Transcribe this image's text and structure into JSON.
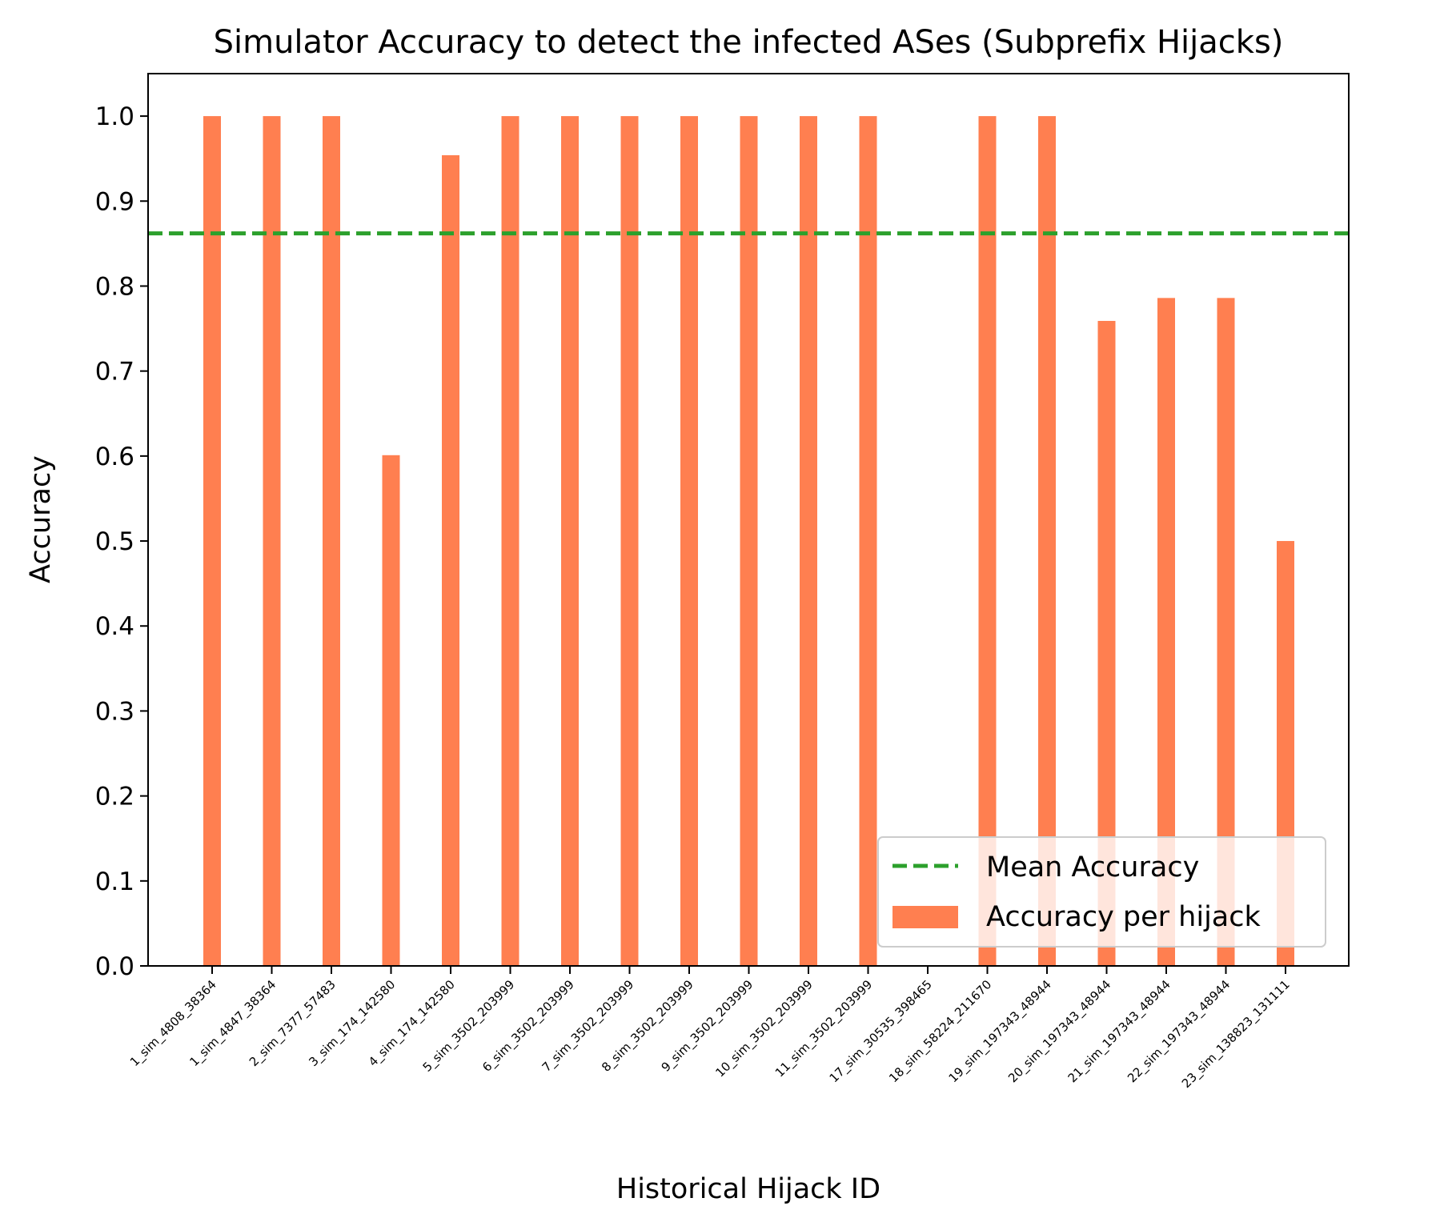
{
  "chart_data": {
    "type": "bar",
    "title": "Simulator Accuracy to detect the infected ASes (Subprefix Hijacks)",
    "xlabel": "Historical Hijack ID",
    "ylabel": "Accuracy",
    "ylim": [
      0,
      1.05
    ],
    "yticks": [
      "0.0",
      "0.1",
      "0.2",
      "0.3",
      "0.4",
      "0.5",
      "0.6",
      "0.7",
      "0.8",
      "0.9",
      "1.0"
    ],
    "categories": [
      "1_sim_4808_38364",
      "1_sim_4847_38364",
      "2_sim_7377_57483",
      "3_sim_174_142580",
      "4_sim_174_142580",
      "5_sim_3502_203999",
      "6_sim_3502_203999",
      "7_sim_3502_203999",
      "8_sim_3502_203999",
      "9_sim_3502_203999",
      "10_sim_3502_203999",
      "11_sim_3502_203999",
      "17_sim_30535_398465",
      "18_sim_58224_211670",
      "19_sim_197343_48944",
      "20_sim_197343_48944",
      "21_sim_197343_48944",
      "22_sim_197343_48944",
      "23_sim_138823_131111"
    ],
    "series": [
      {
        "name": "Accuracy per hijack",
        "color": "#ff7f50",
        "values": [
          1.0,
          1.0,
          1.0,
          0.601,
          0.954,
          1.0,
          1.0,
          1.0,
          1.0,
          1.0,
          1.0,
          1.0,
          0.0,
          1.0,
          1.0,
          0.759,
          0.786,
          0.786,
          0.5
        ]
      }
    ],
    "reference_lines": [
      {
        "name": "Mean Accuracy",
        "value": 0.862,
        "color": "#2ca02c",
        "style": "dashed"
      }
    ],
    "legend_position": "lower-right",
    "grid": false
  }
}
